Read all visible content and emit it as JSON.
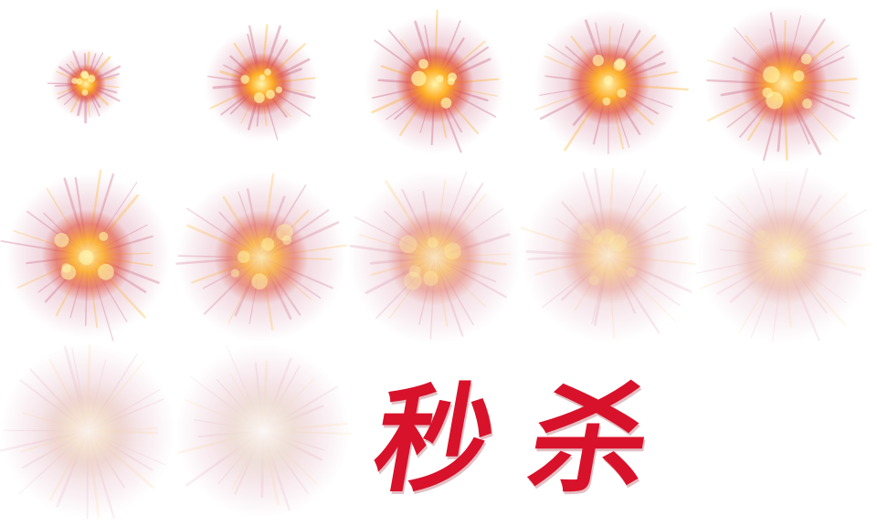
{
  "sprite_sheet": {
    "frames": [
      {
        "frame": 1,
        "glow": "fire-burst-icon",
        "size": 0.35,
        "intensity": 1.0,
        "smoke": 0.0
      },
      {
        "frame": 2,
        "glow": "fire-burst-icon",
        "size": 0.55,
        "intensity": 1.0,
        "smoke": 0.0
      },
      {
        "frame": 3,
        "glow": "fire-burst-icon",
        "size": 0.68,
        "intensity": 1.0,
        "smoke": 0.0
      },
      {
        "frame": 4,
        "glow": "fire-burst-icon",
        "size": 0.72,
        "intensity": 0.95,
        "smoke": 0.05
      },
      {
        "frame": 5,
        "glow": "fire-burst-icon",
        "size": 0.76,
        "intensity": 0.9,
        "smoke": 0.1
      },
      {
        "frame": 6,
        "glow": "fire-burst-icon",
        "size": 0.8,
        "intensity": 0.85,
        "smoke": 0.15
      },
      {
        "frame": 7,
        "glow": "fire-burst-icon",
        "size": 0.82,
        "intensity": 0.7,
        "smoke": 0.25
      },
      {
        "frame": 8,
        "glow": "fire-burst-icon",
        "size": 0.84,
        "intensity": 0.5,
        "smoke": 0.45
      },
      {
        "frame": 9,
        "glow": "fire-burst-icon",
        "size": 0.85,
        "intensity": 0.35,
        "smoke": 0.6
      },
      {
        "frame": 10,
        "glow": "fire-burst-icon",
        "size": 0.86,
        "intensity": 0.25,
        "smoke": 0.7
      },
      {
        "frame": 11,
        "glow": "smoke-cloud-icon",
        "size": 0.86,
        "intensity": 0.1,
        "smoke": 0.85
      },
      {
        "frame": 12,
        "glow": "smoke-cloud-icon",
        "size": 0.86,
        "intensity": 0.03,
        "smoke": 0.95
      }
    ],
    "colors": {
      "core": "#fff6b0",
      "mid": "#ffb020",
      "outer": "#e2442a",
      "halo": "#c85a7a",
      "smoke": "#efe6dc"
    }
  },
  "title_glyphs": {
    "char_1": "秒",
    "char_2": "杀",
    "color": "#d8122a"
  }
}
